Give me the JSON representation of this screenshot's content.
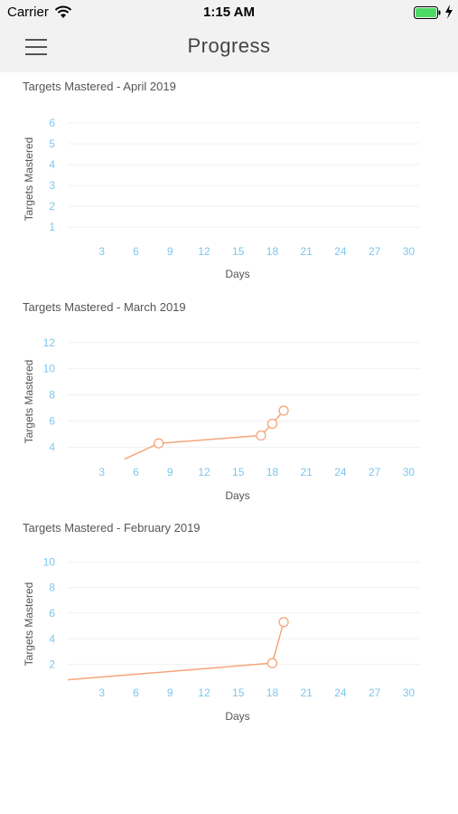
{
  "status_bar": {
    "carrier": "Carrier",
    "time": "1:15 AM"
  },
  "nav": {
    "title": "Progress",
    "menu_icon": "hamburger-menu-icon"
  },
  "colors": {
    "line": "#f6a57b",
    "ticks": "#7cc6ee",
    "nav_bg": "#f2f2f2",
    "battery": "#4cd964"
  },
  "chart_data": [
    {
      "type": "line",
      "title": "Targets Mastered - April 2019",
      "xlabel": "Days",
      "ylabel": "Targets Mastered",
      "x_ticks": [
        "3",
        "6",
        "9",
        "12",
        "15",
        "18",
        "21",
        "24",
        "27",
        "30"
      ],
      "y_ticks": [
        "1",
        "2",
        "3",
        "4",
        "5",
        "6"
      ],
      "xlim": [
        0,
        31
      ],
      "ylim": [
        0.4,
        6.3
      ],
      "series": [
        {
          "x": [],
          "y": []
        }
      ]
    },
    {
      "type": "line",
      "title": "Targets Mastered - March 2019",
      "xlabel": "Days",
      "ylabel": "Targets Mastered",
      "x_ticks": [
        "3",
        "6",
        "9",
        "12",
        "15",
        "18",
        "21",
        "24",
        "27",
        "30"
      ],
      "y_ticks": [
        "4",
        "6",
        "8",
        "10",
        "12"
      ],
      "xlim": [
        0,
        31
      ],
      "ylim": [
        3,
        12.4
      ],
      "series": [
        {
          "x": [
            5,
            8,
            17,
            18,
            19
          ],
          "y": [
            3.1,
            4.3,
            4.9,
            5.8,
            6.8
          ],
          "markers": [
            false,
            true,
            true,
            true,
            true
          ]
        }
      ]
    },
    {
      "type": "line",
      "title": "Targets Mastered - February 2019",
      "xlabel": "Days",
      "ylabel": "Targets Mastered",
      "x_ticks": [
        "3",
        "6",
        "9",
        "12",
        "15",
        "18",
        "21",
        "24",
        "27",
        "30"
      ],
      "y_ticks": [
        "2",
        "4",
        "6",
        "8",
        "10"
      ],
      "xlim": [
        0,
        31
      ],
      "ylim": [
        0.7,
        10.3
      ],
      "series": [
        {
          "x": [
            0,
            18,
            19
          ],
          "y": [
            0.8,
            2.1,
            5.3
          ],
          "markers": [
            false,
            true,
            true
          ]
        }
      ]
    }
  ]
}
